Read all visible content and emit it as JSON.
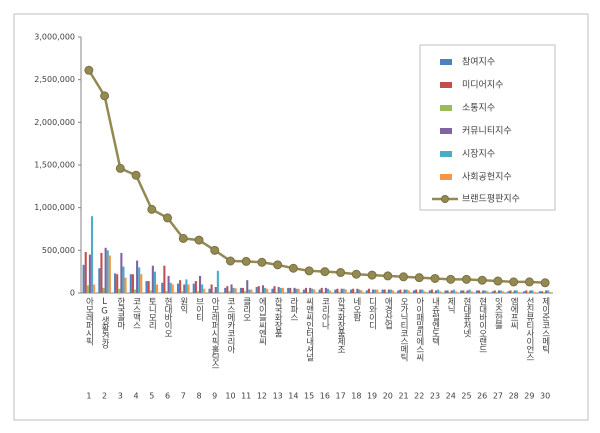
{
  "chart_data": {
    "type": "bar",
    "categories": [
      "아모레퍼시픽",
      "LG생활건강",
      "한국콜마",
      "코스맥스",
      "토니모리",
      "현대바이오",
      "원익",
      "브이티",
      "아모레퍼시픽홀딩스",
      "코스메카코리아",
      "클리오",
      "에이블씨엔씨",
      "한국화장품",
      "라파스",
      "씨앤씨인터내셔널",
      "코리아나",
      "한국화장품제조",
      "네오팜",
      "디와이디",
      "애경산업",
      "오가닉티코스메틱",
      "아이패밀리에스씨",
      "내츄럴엔도텍",
      "제닉",
      "현대퓨처넷",
      "현대바이오랜드",
      "잇츠한불",
      "엠에프씨",
      "선진뷰티사이언스",
      "제이준코스메틱"
    ],
    "ranks": [
      1,
      2,
      3,
      4,
      5,
      6,
      7,
      8,
      9,
      10,
      11,
      12,
      13,
      14,
      15,
      16,
      17,
      18,
      19,
      20,
      21,
      22,
      23,
      24,
      25,
      26,
      27,
      28,
      29,
      30
    ],
    "series": [
      {
        "name": "참여지수",
        "color": "#4f81bd",
        "values": [
          330000,
          290000,
          230000,
          220000,
          140000,
          120000,
          110000,
          110000,
          50000,
          60000,
          60000,
          70000,
          50000,
          60000,
          40000,
          40000,
          40000,
          40000,
          30000,
          40000,
          30000,
          30000,
          30000,
          30000,
          30000,
          30000,
          20000,
          20000,
          20000,
          20000
        ]
      },
      {
        "name": "미디어지수",
        "color": "#c0504d",
        "values": [
          480000,
          470000,
          220000,
          220000,
          140000,
          320000,
          150000,
          140000,
          100000,
          80000,
          60000,
          80000,
          80000,
          60000,
          60000,
          60000,
          50000,
          50000,
          50000,
          40000,
          40000,
          40000,
          40000,
          30000,
          30000,
          30000,
          30000,
          30000,
          30000,
          20000
        ]
      },
      {
        "name": "소통지수",
        "color": "#9bbb59",
        "values": [
          90000,
          60000,
          50000,
          40000,
          30000,
          20000,
          20000,
          20000,
          10000,
          20000,
          20000,
          10000,
          10000,
          10000,
          10000,
          10000,
          10000,
          10000,
          10000,
          10000,
          10000,
          10000,
          10000,
          10000,
          10000,
          10000,
          10000,
          10000,
          10000,
          10000
        ]
      },
      {
        "name": "커뮤니티지수",
        "color": "#8064a2",
        "values": [
          450000,
          530000,
          470000,
          380000,
          320000,
          200000,
          100000,
          200000,
          70000,
          100000,
          150000,
          90000,
          70000,
          60000,
          60000,
          60000,
          50000,
          50000,
          40000,
          40000,
          40000,
          40000,
          30000,
          30000,
          30000,
          30000,
          30000,
          30000,
          30000,
          30000
        ]
      },
      {
        "name": "시장지수",
        "color": "#4bacc6",
        "values": [
          900000,
          500000,
          310000,
          300000,
          250000,
          120000,
          160000,
          100000,
          260000,
          60000,
          40000,
          60000,
          60000,
          50000,
          50000,
          50000,
          50000,
          40000,
          40000,
          40000,
          40000,
          40000,
          40000,
          40000,
          40000,
          30000,
          30000,
          30000,
          30000,
          30000
        ]
      },
      {
        "name": "사회공헌지수",
        "color": "#f79646",
        "values": [
          100000,
          440000,
          180000,
          220000,
          100000,
          100000,
          100000,
          50000,
          10000,
          55000,
          40000,
          50000,
          60000,
          50000,
          40000,
          30000,
          40000,
          30000,
          40000,
          30000,
          30000,
          20000,
          20000,
          20000,
          20000,
          20000,
          20000,
          10000,
          10000,
          10000
        ]
      },
      {
        "name": "브랜드평판지수",
        "type": "line",
        "color": "#938953",
        "values": [
          2610000,
          2310000,
          1460000,
          1380000,
          980000,
          880000,
          640000,
          620000,
          500000,
          375000,
          370000,
          360000,
          330000,
          290000,
          260000,
          250000,
          240000,
          220000,
          210000,
          200000,
          190000,
          180000,
          170000,
          160000,
          160000,
          150000,
          140000,
          130000,
          130000,
          120000
        ]
      }
    ],
    "ylim": [
      0,
      3000000
    ],
    "yticks": [
      0,
      {
        "value": 500000,
        "label": "500,000"
      },
      {
        "value": 1000000,
        "label": "1,000,000"
      },
      {
        "value": 1500000,
        "label": "1,500,000"
      },
      {
        "value": 2000000,
        "label": "2,000,000"
      },
      {
        "value": 2500000,
        "label": "2,500,000"
      },
      {
        "value": 3000000,
        "label": "3,000,000"
      }
    ],
    "grid": false
  }
}
